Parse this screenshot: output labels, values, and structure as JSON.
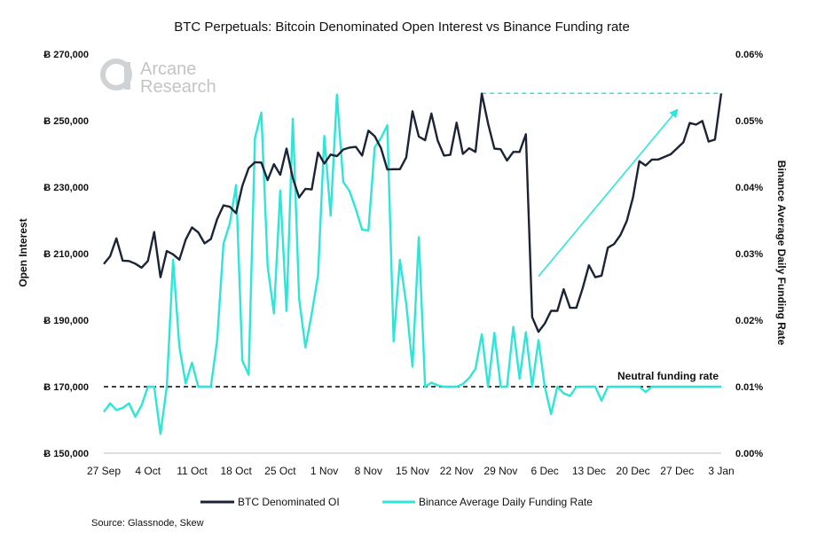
{
  "chart_data": {
    "type": "line",
    "title": "BTC Perpetuals: Bitcoin Denominated Open Interest vs Binance Funding rate",
    "ylabel_left": "Open Interest",
    "ylabel_right": "Binance Average Daily Funding Rate",
    "yleft_ticks": [
      "Ƀ 150,000",
      "Ƀ 170,000",
      "Ƀ 190,000",
      "Ƀ 210,000",
      "Ƀ 230,000",
      "Ƀ 250,000",
      "Ƀ 270,000"
    ],
    "yright_ticks": [
      "0.00%",
      "0.01%",
      "0.02%",
      "0.03%",
      "0.04%",
      "0.05%",
      "0.06%"
    ],
    "yleft_lim": [
      150000,
      270000
    ],
    "yright_lim": [
      0,
      0.06
    ],
    "x_ticks": [
      "27 Sep",
      "4 Oct",
      "11 Oct",
      "18 Oct",
      "25 Oct",
      "1 Nov",
      "8 Nov",
      "15 Nov",
      "22 Nov",
      "29 Nov",
      "6 Dec",
      "13 Dec",
      "20 Dec",
      "27 Dec",
      "3 Jan"
    ],
    "x_lim": [
      0,
      98
    ],
    "legend_position": "bottom",
    "series": [
      {
        "name": "BTC Denominated OI",
        "color": "#1b2436",
        "axis": "left",
        "x": [
          0,
          1,
          2,
          3,
          4,
          5,
          6,
          7,
          8,
          9,
          10,
          11,
          12,
          13,
          14,
          15,
          16,
          17,
          18,
          19,
          20,
          21,
          22,
          23,
          24,
          25,
          26,
          27,
          28,
          29,
          30,
          31,
          32,
          33,
          34,
          35,
          36,
          37,
          38,
          39,
          40,
          41,
          42,
          43,
          44,
          45,
          46,
          47,
          48,
          49,
          50,
          51,
          52,
          53,
          54,
          55,
          56,
          57,
          58,
          59,
          60,
          61,
          62,
          63,
          64,
          65,
          66,
          67,
          68,
          69,
          70,
          71,
          72,
          73,
          74,
          75,
          76,
          77,
          78,
          79,
          80,
          81,
          82,
          83,
          84,
          85,
          86,
          87,
          88,
          89,
          90,
          91,
          92,
          93,
          94,
          95,
          96,
          97,
          98
        ],
        "values": [
          206900,
          209200,
          214600,
          207900,
          207800,
          207000,
          205800,
          207800,
          216500,
          202900,
          210800,
          209800,
          208200,
          214200,
          217900,
          216400,
          213100,
          214400,
          220400,
          224500,
          224100,
          222200,
          230400,
          235700,
          237500,
          237400,
          232100,
          236900,
          233700,
          241600,
          232700,
          226900,
          229500,
          229300,
          240400,
          237100,
          239800,
          239300,
          241300,
          241900,
          242100,
          239500,
          247000,
          245300,
          241700,
          235300,
          235400,
          235400,
          238900,
          252800,
          245200,
          244100,
          252100,
          244000,
          239500,
          239700,
          249400,
          240000,
          241700,
          240600,
          258100,
          249100,
          241600,
          241400,
          238000,
          240600,
          240600,
          245900,
          190900,
          186500,
          189000,
          192800,
          192800,
          199300,
          193700,
          193700,
          199600,
          206500,
          202900,
          203400,
          211800,
          212900,
          215600,
          219800,
          227000,
          237800,
          236500,
          238300,
          238300,
          239100,
          239900,
          241700,
          243500,
          249300,
          248800,
          249900,
          243700,
          244300,
          258200
        ]
      },
      {
        "name": "Binance Average Daily Funding Rate",
        "color": "#2ee5d8",
        "axis": "right",
        "x": [
          0,
          1,
          2,
          3,
          4,
          5,
          6,
          7,
          8,
          9,
          10,
          11,
          12,
          13,
          14,
          15,
          16,
          17,
          18,
          19,
          20,
          21,
          22,
          23,
          24,
          25,
          26,
          27,
          28,
          29,
          30,
          31,
          32,
          33,
          34,
          35,
          36,
          37,
          38,
          39,
          40,
          41,
          42,
          43,
          44,
          45,
          46,
          47,
          48,
          49,
          50,
          51,
          52,
          53,
          54,
          55,
          56,
          57,
          58,
          59,
          60,
          61,
          62,
          63,
          64,
          65,
          66,
          67,
          68,
          69,
          70,
          71,
          72,
          73,
          74,
          75,
          76,
          77,
          78,
          79,
          80,
          81,
          82,
          83,
          84,
          85,
          86,
          87,
          88,
          89,
          90,
          91,
          92,
          93,
          94,
          95,
          96,
          97,
          98
        ],
        "values": [
          0.0062,
          0.0075,
          0.0065,
          0.0068,
          0.0075,
          0.0055,
          0.0072,
          0.01,
          0.01,
          0.0029,
          0.01,
          0.0291,
          0.016,
          0.0105,
          0.0136,
          0.01,
          0.01,
          0.01,
          0.017,
          0.0315,
          0.0345,
          0.0403,
          0.0139,
          0.0118,
          0.0474,
          0.0512,
          0.0281,
          0.021,
          0.0395,
          0.0214,
          0.0503,
          0.0232,
          0.0159,
          0.021,
          0.0267,
          0.0477,
          0.0357,
          0.0539,
          0.0408,
          0.0394,
          0.0367,
          0.0336,
          0.0335,
          0.046,
          0.0474,
          0.0493,
          0.0168,
          0.0291,
          0.0225,
          0.013,
          0.0325,
          0.01,
          0.0106,
          0.0102,
          0.01,
          0.01,
          0.01,
          0.0104,
          0.0113,
          0.0127,
          0.0179,
          0.01,
          0.0181,
          0.01,
          0.01,
          0.019,
          0.0112,
          0.0182,
          0.01,
          0.017,
          0.01,
          0.0059,
          0.01,
          0.009,
          0.0086,
          0.01,
          0.01,
          0.01,
          0.01,
          0.0079,
          0.01,
          0.01,
          0.01,
          0.01,
          0.01,
          0.01,
          0.0092,
          0.01,
          0.01,
          0.01,
          0.01,
          0.01,
          0.01,
          0.01,
          0.01,
          0.01,
          0.01,
          0.01,
          0.01
        ]
      }
    ],
    "annotations": {
      "neutral_label": "Neutral funding rate",
      "neutral_value": 0.01,
      "peak_line_value": 258200,
      "peak_line_x": [
        60,
        98
      ],
      "trend_arrow": {
        "from": [
          69,
          203200
        ],
        "to": [
          91,
          253200
        ]
      }
    }
  },
  "logo": {
    "line1": "Arcane",
    "line2": "Research"
  },
  "legend": {
    "oi_label": "BTC Denominated OI",
    "funding_label": "Binance Average Daily Funding Rate"
  },
  "source": "Source: Glassnode, Skew",
  "colors": {
    "oi": "#1b2436",
    "funding": "#2ee5d8",
    "logo": "#bdbdbd"
  }
}
